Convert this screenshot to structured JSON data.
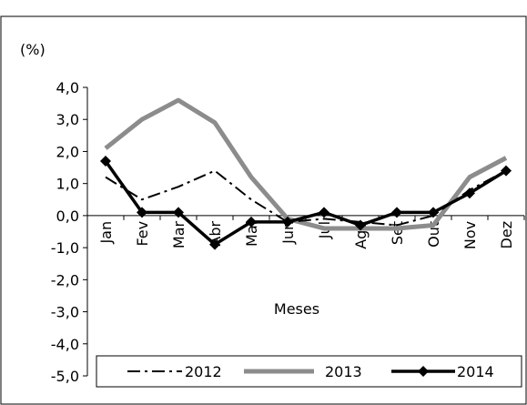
{
  "chart_data": {
    "type": "line",
    "title": "",
    "ylabel": "(%)",
    "xlabel": "Meses",
    "ylim": [
      -5,
      4
    ],
    "yticks": [
      "4,0",
      "3,0",
      "2,0",
      "1,0",
      "0,0",
      "-1,0",
      "-2,0",
      "-3,0",
      "-4,0",
      "-5,0"
    ],
    "ytick_values": [
      4,
      3,
      2,
      1,
      0,
      -1,
      -2,
      -3,
      -4,
      -5
    ],
    "categories": [
      "Jan",
      "Fev",
      "Mar",
      "Abr",
      "Mai",
      "Jun",
      "Jul",
      "Ago",
      "Set",
      "Out",
      "Nov",
      "Dez"
    ],
    "grid": false,
    "legend_position": "bottom",
    "series": [
      {
        "name": "2012",
        "color": "#000000",
        "style": "dash-dot",
        "values": [
          1.2,
          0.5,
          0.9,
          1.4,
          0.5,
          -0.2,
          -0.1,
          -0.2,
          -0.3,
          0.0,
          0.8,
          1.4
        ]
      },
      {
        "name": "2013",
        "color": "#8c8c8c",
        "style": "solid-thick",
        "values": [
          2.1,
          3.0,
          3.6,
          2.9,
          1.2,
          -0.1,
          -0.4,
          -0.4,
          -0.4,
          -0.3,
          1.2,
          1.8
        ]
      },
      {
        "name": "2014",
        "color": "#000000",
        "style": "solid-diamond",
        "values": [
          1.7,
          0.1,
          0.1,
          -0.9,
          -0.2,
          -0.2,
          0.1,
          -0.3,
          0.1,
          0.1,
          0.7,
          1.4
        ]
      }
    ]
  }
}
